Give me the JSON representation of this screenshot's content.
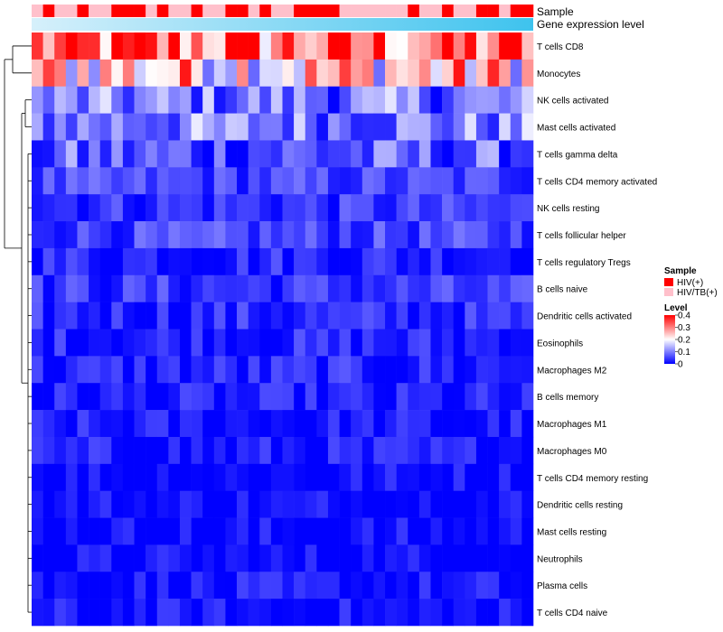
{
  "chart_data": {
    "type": "heatmap",
    "annotation_tracks": [
      "Sample",
      "Gene expression level"
    ],
    "sample_groups": [
      "HIV(+)",
      "HIV/TB(+)"
    ],
    "sample_annotation": [
      1,
      0,
      1,
      1,
      0,
      1,
      1,
      0,
      0,
      0,
      1,
      0,
      1,
      1,
      0,
      1,
      1,
      0,
      0,
      1,
      0,
      1,
      1,
      0,
      0,
      0,
      0,
      1,
      1,
      1,
      1,
      1,
      1,
      0,
      1,
      1,
      0,
      1,
      1,
      0,
      0,
      1,
      0,
      0
    ],
    "rows": [
      "T cells CD8",
      "Monocytes",
      "NK cells activated",
      "Mast cells activated",
      "T cells gamma delta",
      "T cells CD4 memory activated",
      "NK cells resting",
      "T cells follicular helper",
      "T cells regulatory  Tregs",
      "B cells naive",
      "Dendritic cells activated",
      "Eosinophils",
      "Macrophages M2",
      "B cells memory",
      "Macrophages M1",
      "Macrophages M0",
      "T cells CD4 memory resting",
      "Dendritic cells resting",
      "Mast cells resting",
      "Neutrophils",
      "Plasma cells",
      "T cells CD4 naive"
    ],
    "row_level": [
      0.31,
      0.24,
      0.09,
      0.1,
      0.06,
      0.05,
      0.04,
      0.05,
      0.03,
      0.04,
      0.03,
      0.025,
      0.025,
      0.015,
      0.012,
      0.015,
      0.005,
      0.006,
      0.002,
      0.001,
      0.008,
      0.006
    ],
    "legend": {
      "sample_title": "Sample",
      "sample_items": [
        {
          "label": "HIV(+)",
          "color": "#ff0000"
        },
        {
          "label": "HIV/TB(+)",
          "color": "#ffc0cb"
        }
      ],
      "level_title": "Level",
      "level_ticks": [
        "0.4",
        "0.3",
        "0.2",
        "0.1",
        "0"
      ]
    },
    "level_range": [
      0,
      0.4
    ],
    "colors": {
      "low": "#0000ff",
      "mid": "#ffffff",
      "high": "#ff0000",
      "track_light": "#d6f0fb",
      "track_dark": "#3ec3ee"
    }
  }
}
